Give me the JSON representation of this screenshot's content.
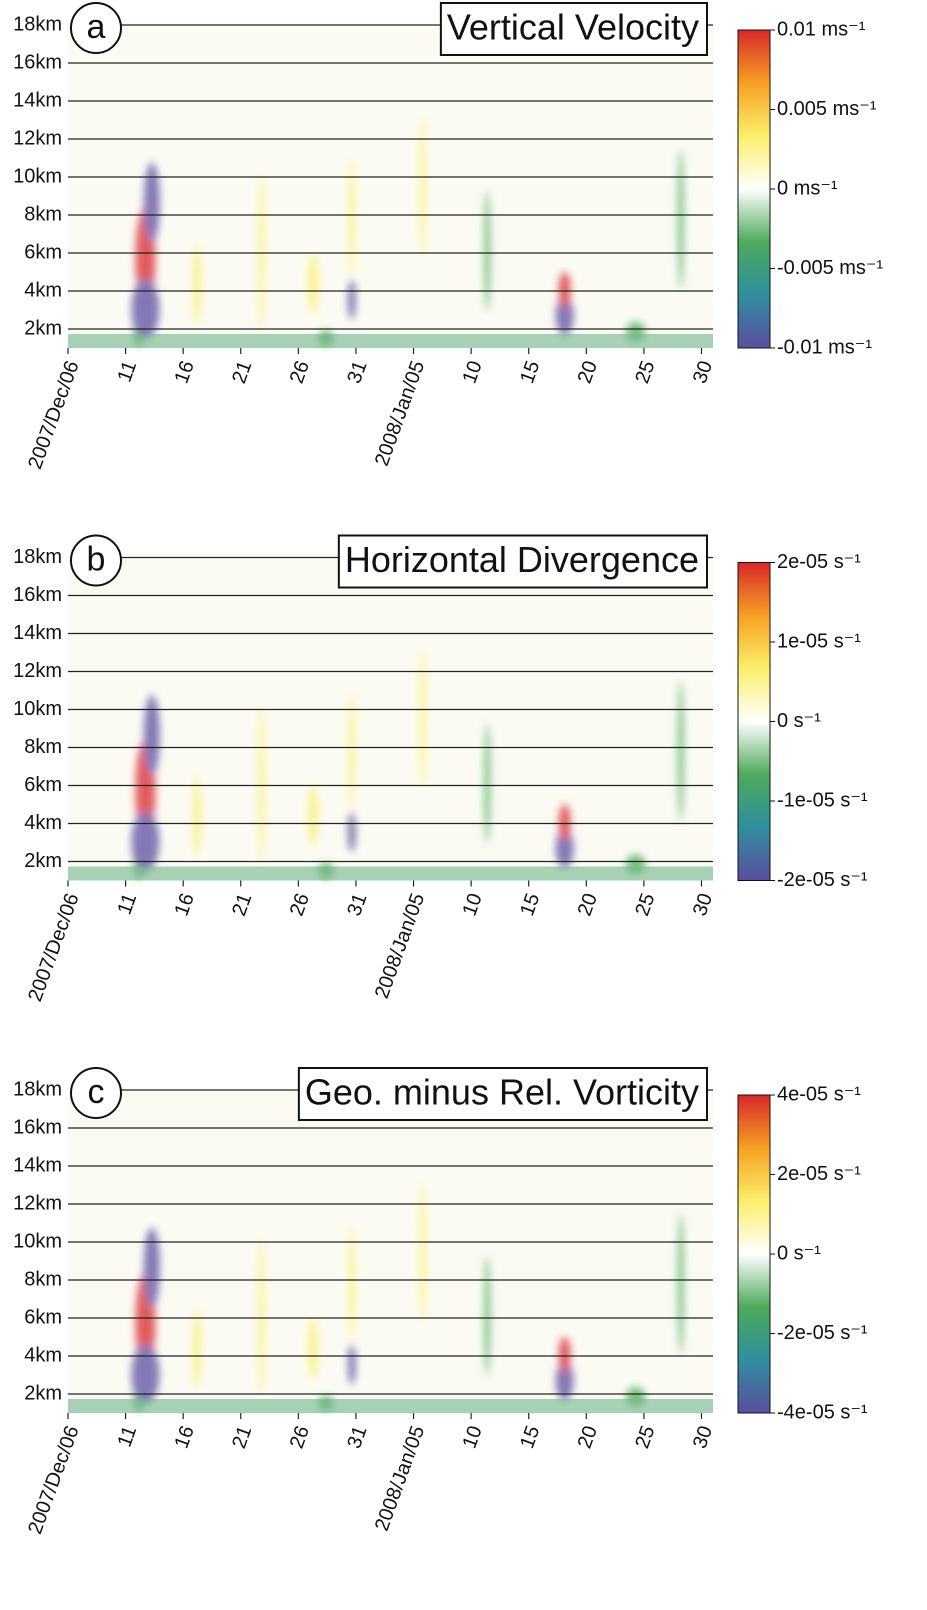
{
  "chart_data": [
    {
      "type": "heatmap",
      "panel_label": "a",
      "title": "Vertical Velocity",
      "ylim": [
        1,
        18
      ],
      "yticks": [
        {
          "value": 18,
          "label": "18km"
        },
        {
          "value": 16,
          "label": "16km"
        },
        {
          "value": 14,
          "label": "14km"
        },
        {
          "value": 12,
          "label": "12km"
        },
        {
          "value": 10,
          "label": "10km"
        },
        {
          "value": 8,
          "label": "8km"
        },
        {
          "value": 6,
          "label": "6km"
        },
        {
          "value": 4,
          "label": "4km"
        },
        {
          "value": 2,
          "label": "2km"
        }
      ],
      "xlim": [
        "2007-12-06",
        "2008-01-31"
      ],
      "xticks": [
        {
          "value": "2007-12-06",
          "label": "2007/Dec/06"
        },
        {
          "value": "2007-12-11",
          "label": "11"
        },
        {
          "value": "2007-12-16",
          "label": "16"
        },
        {
          "value": "2007-12-21",
          "label": "21"
        },
        {
          "value": "2007-12-26",
          "label": "26"
        },
        {
          "value": "2007-12-31",
          "label": "31"
        },
        {
          "value": "2008-01-05",
          "label": "2008/Jan/05"
        },
        {
          "value": "2008-01-10",
          "label": "10"
        },
        {
          "value": "2008-01-15",
          "label": "15"
        },
        {
          "value": "2008-01-20",
          "label": "20"
        },
        {
          "value": "2008-01-25",
          "label": "25"
        },
        {
          "value": "2008-01-30",
          "label": "30"
        }
      ],
      "colormap": [
        "#5b4ea0",
        "#2f8fa0",
        "#4daa5a",
        "#ffffff",
        "#fbef6a",
        "#f6a023",
        "#d9282a"
      ],
      "clim": [
        -0.01,
        0.01
      ],
      "cticks": [
        {
          "value": 0.01,
          "label": "0.01 ms⁻¹"
        },
        {
          "value": 0.005,
          "label": "0.005 ms⁻¹"
        },
        {
          "value": 0,
          "label": "0 ms⁻¹"
        },
        {
          "value": -0.005,
          "label": "-0.005 ms⁻¹"
        },
        {
          "value": -0.01,
          "label": "-0.01 ms⁻¹"
        }
      ]
    },
    {
      "type": "heatmap",
      "panel_label": "b",
      "title": "Horizontal Divergence",
      "ylim": [
        1,
        18
      ],
      "yticks": [
        {
          "value": 18,
          "label": "18km"
        },
        {
          "value": 16,
          "label": "16km"
        },
        {
          "value": 14,
          "label": "14km"
        },
        {
          "value": 12,
          "label": "12km"
        },
        {
          "value": 10,
          "label": "10km"
        },
        {
          "value": 8,
          "label": "8km"
        },
        {
          "value": 6,
          "label": "6km"
        },
        {
          "value": 4,
          "label": "4km"
        },
        {
          "value": 2,
          "label": "2km"
        }
      ],
      "xlim": [
        "2007-12-06",
        "2008-01-31"
      ],
      "xticks": [
        {
          "value": "2007-12-06",
          "label": "2007/Dec/06"
        },
        {
          "value": "2007-12-11",
          "label": "11"
        },
        {
          "value": "2007-12-16",
          "label": "16"
        },
        {
          "value": "2007-12-21",
          "label": "21"
        },
        {
          "value": "2007-12-26",
          "label": "26"
        },
        {
          "value": "2007-12-31",
          "label": "31"
        },
        {
          "value": "2008-01-05",
          "label": "2008/Jan/05"
        },
        {
          "value": "2008-01-10",
          "label": "10"
        },
        {
          "value": "2008-01-15",
          "label": "15"
        },
        {
          "value": "2008-01-20",
          "label": "20"
        },
        {
          "value": "2008-01-25",
          "label": "25"
        },
        {
          "value": "2008-01-30",
          "label": "30"
        }
      ],
      "colormap": [
        "#5b4ea0",
        "#2f8fa0",
        "#4daa5a",
        "#ffffff",
        "#fbef6a",
        "#f6a023",
        "#d9282a"
      ],
      "clim": [
        -2e-05,
        2e-05
      ],
      "cticks": [
        {
          "value": 2e-05,
          "label": "2e-05 s⁻¹"
        },
        {
          "value": 1e-05,
          "label": "1e-05 s⁻¹"
        },
        {
          "value": 0,
          "label": "0 s⁻¹"
        },
        {
          "value": -1e-05,
          "label": "-1e-05 s⁻¹"
        },
        {
          "value": -2e-05,
          "label": "-2e-05 s⁻¹"
        }
      ]
    },
    {
      "type": "heatmap",
      "panel_label": "c",
      "title": "Geo. minus Rel. Vorticity",
      "ylim": [
        1,
        18
      ],
      "yticks": [
        {
          "value": 18,
          "label": "18km"
        },
        {
          "value": 16,
          "label": "16km"
        },
        {
          "value": 14,
          "label": "14km"
        },
        {
          "value": 12,
          "label": "12km"
        },
        {
          "value": 10,
          "label": "10km"
        },
        {
          "value": 8,
          "label": "8km"
        },
        {
          "value": 6,
          "label": "6km"
        },
        {
          "value": 4,
          "label": "4km"
        },
        {
          "value": 2,
          "label": "2km"
        }
      ],
      "xlim": [
        "2007-12-06",
        "2008-01-31"
      ],
      "xticks": [
        {
          "value": "2007-12-06",
          "label": "2007/Dec/06"
        },
        {
          "value": "2007-12-11",
          "label": "11"
        },
        {
          "value": "2007-12-16",
          "label": "16"
        },
        {
          "value": "2007-12-21",
          "label": "21"
        },
        {
          "value": "2007-12-26",
          "label": "26"
        },
        {
          "value": "2007-12-31",
          "label": "31"
        },
        {
          "value": "2008-01-05",
          "label": "2008/Jan/05"
        },
        {
          "value": "2008-01-10",
          "label": "10"
        },
        {
          "value": "2008-01-15",
          "label": "15"
        },
        {
          "value": "2008-01-20",
          "label": "20"
        },
        {
          "value": "2008-01-25",
          "label": "25"
        },
        {
          "value": "2008-01-30",
          "label": "30"
        }
      ],
      "colormap": [
        "#5b4ea0",
        "#2f8fa0",
        "#4daa5a",
        "#ffffff",
        "#fbef6a",
        "#f6a023",
        "#d9282a"
      ],
      "clim": [
        -4e-05,
        4e-05
      ],
      "cticks": [
        {
          "value": 4e-05,
          "label": "4e-05 s⁻¹"
        },
        {
          "value": 2e-05,
          "label": "2e-05 s⁻¹"
        },
        {
          "value": 0,
          "label": "0 s⁻¹"
        },
        {
          "value": -2e-05,
          "label": "-2e-05 s⁻¹"
        },
        {
          "value": -4e-05,
          "label": "-4e-05 s⁻¹"
        }
      ]
    }
  ]
}
